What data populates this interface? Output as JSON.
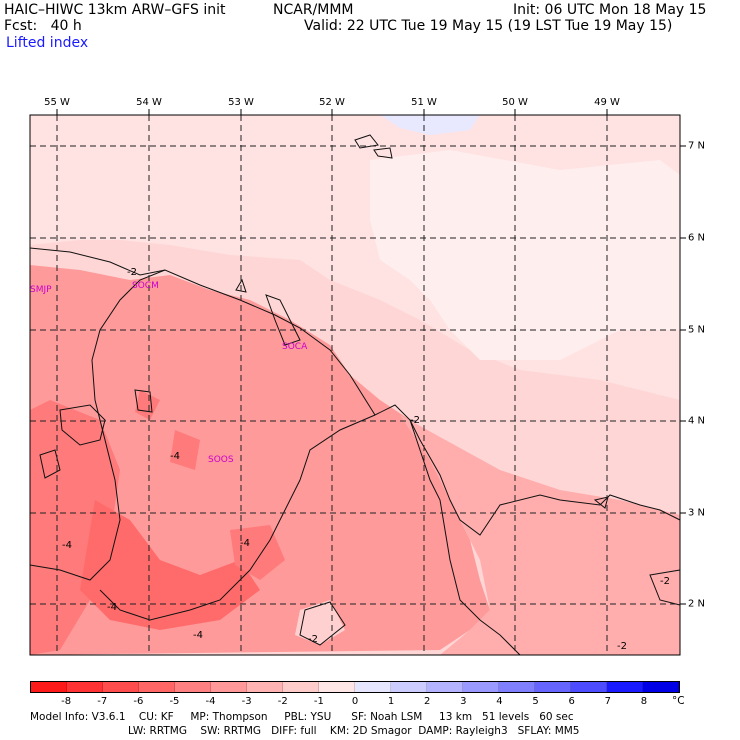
{
  "header": {
    "model_line": "HAIC–HIWC 13km ARW–GFS init",
    "org": "NCAR/MMM",
    "init": "Init: 06 UTC Mon 18 May 15",
    "fcst": "Fcst:   40 h",
    "valid": "Valid: 22 UTC Tue 19 May 15 (19 LST Tue 19 May 15)",
    "field": "Lifted index"
  },
  "map": {
    "lon_labels": [
      "55 W",
      "54 W",
      "53 W",
      "52 W",
      "51 W",
      "50 W",
      "49 W"
    ],
    "lat_labels": [
      "7 N",
      "6 N",
      "5 N",
      "4 N",
      "3 N",
      "2 N"
    ],
    "stations": [
      "SMJP",
      "SOCM",
      "SOCA",
      "SOOS"
    ],
    "contour_labels": [
      "-2",
      "-4",
      "-4",
      "-4",
      "-4",
      "-4",
      "-2",
      "-2",
      "-2",
      "-2"
    ]
  },
  "colorbar": {
    "ticks": [
      "-8",
      "-7",
      "-6",
      "-5",
      "-4",
      "-3",
      "-2",
      "-1",
      "0",
      "1",
      "2",
      "3",
      "4",
      "5",
      "6",
      "7",
      "8"
    ],
    "unit": "°C",
    "colors": [
      "#ff1a1a",
      "#ff3333",
      "#ff4d4d",
      "#ff6666",
      "#ff8080",
      "#ff9999",
      "#ffb3b3",
      "#ffcccc",
      "#ffe6e6",
      "#e6e6ff",
      "#ccccff",
      "#b3b3ff",
      "#9999ff",
      "#8080ff",
      "#6666ff",
      "#4d4dff",
      "#1a1aff",
      "#0000e6"
    ]
  },
  "footer": {
    "line1": "Model Info: V3.6.1    CU: KF     MP: Thompson     PBL: YSU      SF: Noah LSM     13 km   51 levels   60 sec",
    "line2": "LW: RRTMG    SW: RRTMG   DIFF: full    KM: 2D Smagor  DAMP: Rayleigh3   SFLAY: MM5"
  }
}
